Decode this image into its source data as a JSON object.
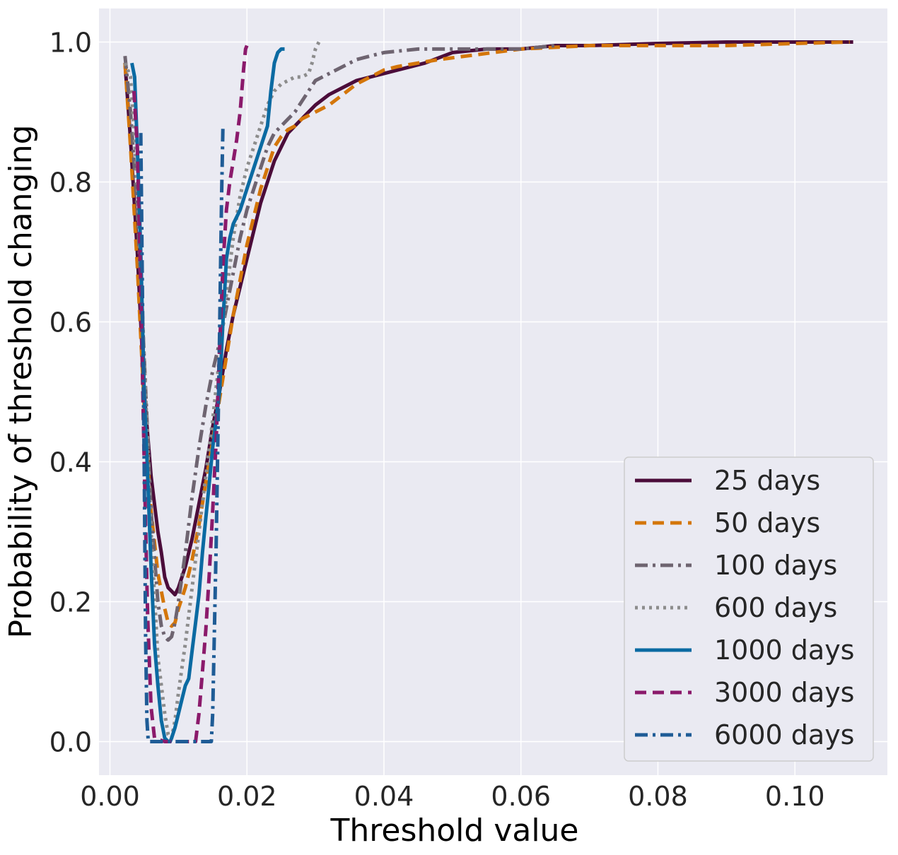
{
  "chart_data": {
    "type": "line",
    "xlabel": "Threshold value",
    "ylabel": "Probability of threshold changing",
    "xlim": [
      -0.0016,
      0.1135
    ],
    "ylim": [
      -0.048,
      1.048
    ],
    "xticks": [
      0.0,
      0.02,
      0.04,
      0.06,
      0.08,
      0.1
    ],
    "xtick_labels": [
      "0.00",
      "0.02",
      "0.04",
      "0.06",
      "0.08",
      "0.10"
    ],
    "yticks": [
      0.0,
      0.2,
      0.4,
      0.6,
      0.8,
      1.0
    ],
    "ytick_labels": [
      "0.0",
      "0.2",
      "0.4",
      "0.6",
      "0.8",
      "1.0"
    ],
    "grid": true,
    "legend_position": "bottom-right",
    "background": "#eaeaf2",
    "series": [
      {
        "name": "25 days",
        "color": "#4b0c3a",
        "dash": "solid",
        "x": [
          0.0022,
          0.003,
          0.004,
          0.005,
          0.006,
          0.007,
          0.0075,
          0.008,
          0.0085,
          0.009,
          0.0095,
          0.01,
          0.011,
          0.012,
          0.013,
          0.014,
          0.015,
          0.016,
          0.017,
          0.018,
          0.019,
          0.02,
          0.021,
          0.022,
          0.023,
          0.024,
          0.025,
          0.026,
          0.027,
          0.028,
          0.029,
          0.03,
          0.032,
          0.034,
          0.036,
          0.038,
          0.04,
          0.042,
          0.044,
          0.046,
          0.05,
          0.055,
          0.06,
          0.065,
          0.07,
          0.08,
          0.09,
          0.1,
          0.1085
        ],
        "y": [
          0.97,
          0.86,
          0.7,
          0.5,
          0.38,
          0.3,
          0.27,
          0.235,
          0.22,
          0.215,
          0.21,
          0.22,
          0.25,
          0.29,
          0.34,
          0.39,
          0.45,
          0.5,
          0.56,
          0.61,
          0.65,
          0.69,
          0.73,
          0.77,
          0.8,
          0.83,
          0.85,
          0.87,
          0.88,
          0.89,
          0.9,
          0.91,
          0.925,
          0.935,
          0.945,
          0.95,
          0.955,
          0.96,
          0.965,
          0.97,
          0.985,
          0.99,
          0.99,
          0.995,
          0.995,
          0.998,
          1.0,
          1.0,
          1.0
        ]
      },
      {
        "name": "50 days",
        "color": "#d4760a",
        "dash": "dashed",
        "x": [
          0.0022,
          0.003,
          0.004,
          0.005,
          0.006,
          0.007,
          0.008,
          0.0085,
          0.009,
          0.0095,
          0.01,
          0.011,
          0.012,
          0.013,
          0.014,
          0.015,
          0.016,
          0.017,
          0.018,
          0.019,
          0.02,
          0.021,
          0.022,
          0.023,
          0.024,
          0.025,
          0.026,
          0.027,
          0.028,
          0.03,
          0.032,
          0.034,
          0.036,
          0.038,
          0.04,
          0.042,
          0.045,
          0.048,
          0.052,
          0.06,
          0.07,
          0.08,
          0.09,
          0.1,
          0.108
        ],
        "y": [
          0.97,
          0.85,
          0.68,
          0.48,
          0.33,
          0.24,
          0.19,
          0.17,
          0.165,
          0.17,
          0.19,
          0.22,
          0.26,
          0.31,
          0.37,
          0.43,
          0.49,
          0.55,
          0.61,
          0.66,
          0.71,
          0.75,
          0.79,
          0.82,
          0.85,
          0.865,
          0.875,
          0.88,
          0.89,
          0.9,
          0.91,
          0.925,
          0.94,
          0.95,
          0.96,
          0.965,
          0.97,
          0.975,
          0.98,
          0.99,
          0.995,
          0.995,
          0.995,
          0.998,
          1.0
        ]
      },
      {
        "name": "100 days",
        "color": "#6e6470",
        "dash": "dashdot",
        "x": [
          0.0022,
          0.003,
          0.004,
          0.005,
          0.006,
          0.007,
          0.0075,
          0.008,
          0.0085,
          0.009,
          0.0095,
          0.01,
          0.011,
          0.012,
          0.013,
          0.014,
          0.015,
          0.016,
          0.017,
          0.018,
          0.019,
          0.02,
          0.021,
          0.022,
          0.023,
          0.024,
          0.025,
          0.026,
          0.027,
          0.028,
          0.029,
          0.03,
          0.032,
          0.034,
          0.036,
          0.038,
          0.04,
          0.045,
          0.05,
          0.055,
          0.06,
          0.065
        ],
        "y": [
          0.98,
          0.9,
          0.76,
          0.55,
          0.33,
          0.2,
          0.165,
          0.15,
          0.145,
          0.15,
          0.17,
          0.2,
          0.27,
          0.35,
          0.42,
          0.48,
          0.53,
          0.57,
          0.62,
          0.67,
          0.72,
          0.76,
          0.79,
          0.82,
          0.85,
          0.87,
          0.88,
          0.89,
          0.9,
          0.915,
          0.93,
          0.945,
          0.955,
          0.965,
          0.975,
          0.98,
          0.985,
          0.99,
          0.99,
          0.99,
          0.99,
          0.995
        ]
      },
      {
        "name": "600 days",
        "color": "#8c8c8c",
        "dash": "dotted",
        "x": [
          0.0022,
          0.003,
          0.004,
          0.005,
          0.006,
          0.007,
          0.0075,
          0.008,
          0.0085,
          0.009,
          0.0095,
          0.01,
          0.011,
          0.012,
          0.013,
          0.014,
          0.015,
          0.016,
          0.017,
          0.018,
          0.019,
          0.02,
          0.021,
          0.022,
          0.023,
          0.024,
          0.025,
          0.026,
          0.027,
          0.028,
          0.029,
          0.0295,
          0.03,
          0.0305
        ],
        "y": [
          0.97,
          0.95,
          0.8,
          0.55,
          0.3,
          0.12,
          0.08,
          0.04,
          0.01,
          0.005,
          0.03,
          0.07,
          0.14,
          0.22,
          0.3,
          0.38,
          0.46,
          0.55,
          0.64,
          0.72,
          0.78,
          0.82,
          0.85,
          0.88,
          0.91,
          0.93,
          0.94,
          0.945,
          0.95,
          0.95,
          0.955,
          0.97,
          0.99,
          1.0
        ]
      },
      {
        "name": "1000 days",
        "color": "#0b6aa2",
        "dash": "solid",
        "x": [
          0.0032,
          0.0036,
          0.004,
          0.0045,
          0.005,
          0.0055,
          0.006,
          0.0065,
          0.007,
          0.0075,
          0.008,
          0.0085,
          0.0088,
          0.009,
          0.0095,
          0.01,
          0.0105,
          0.011,
          0.0115,
          0.012,
          0.0125,
          0.013,
          0.0135,
          0.014,
          0.0145,
          0.015,
          0.0155,
          0.016,
          0.0165,
          0.017,
          0.0175,
          0.018,
          0.019,
          0.02,
          0.021,
          0.022,
          0.023,
          0.0235,
          0.024,
          0.0245,
          0.025,
          0.0255
        ],
        "y": [
          0.97,
          0.95,
          0.85,
          0.7,
          0.5,
          0.38,
          0.25,
          0.14,
          0.08,
          0.03,
          0.005,
          0.0,
          0.0,
          0.005,
          0.02,
          0.04,
          0.06,
          0.08,
          0.09,
          0.13,
          0.17,
          0.21,
          0.27,
          0.32,
          0.37,
          0.42,
          0.46,
          0.5,
          0.6,
          0.69,
          0.72,
          0.74,
          0.76,
          0.79,
          0.82,
          0.85,
          0.88,
          0.93,
          0.97,
          0.985,
          0.99,
          0.99
        ]
      },
      {
        "name": "3000 days",
        "color": "#8b1a6b",
        "dash": "dashed",
        "x": [
          0.0035,
          0.004,
          0.0045,
          0.005,
          0.0055,
          0.006,
          0.0065,
          0.008,
          0.0095,
          0.011,
          0.0125,
          0.013,
          0.0135,
          0.014,
          0.0145,
          0.015,
          0.0155,
          0.016,
          0.0165,
          0.017,
          0.0175,
          0.018,
          0.0185,
          0.019,
          0.0195,
          0.0198,
          0.02
        ],
        "y": [
          0.93,
          0.85,
          0.65,
          0.4,
          0.18,
          0.05,
          0.005,
          0.0,
          0.0,
          0.0,
          0.0,
          0.04,
          0.1,
          0.16,
          0.24,
          0.33,
          0.43,
          0.56,
          0.68,
          0.76,
          0.8,
          0.83,
          0.86,
          0.9,
          0.96,
          0.99,
          0.995
        ]
      },
      {
        "name": "6000 days",
        "color": "#1f5c96",
        "dash": "dashdot",
        "x": [
          0.0045,
          0.005,
          0.0052,
          0.0054,
          0.0056,
          0.0058,
          0.006,
          0.008,
          0.01,
          0.012,
          0.014,
          0.0148,
          0.015,
          0.0155,
          0.016,
          0.0163,
          0.0165
        ],
        "y": [
          0.87,
          0.4,
          0.15,
          0.03,
          0.0,
          0.0,
          0.0,
          0.0,
          0.0,
          0.0,
          0.0,
          0.0,
          0.04,
          0.28,
          0.58,
          0.78,
          0.88
        ]
      }
    ]
  }
}
